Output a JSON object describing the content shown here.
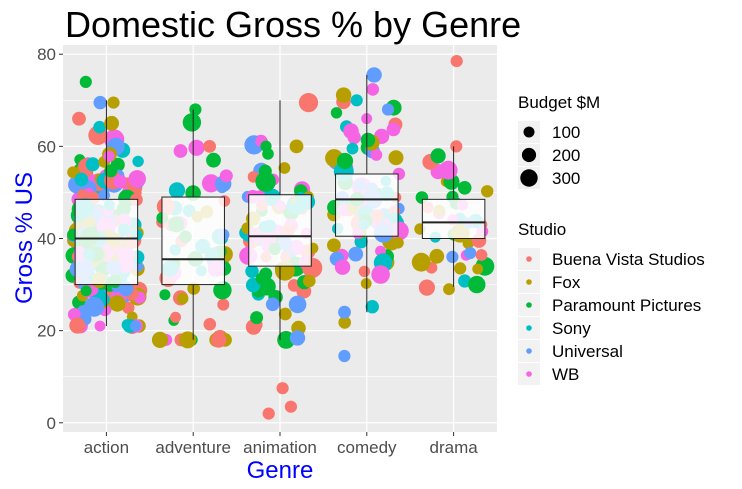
{
  "chart_data": {
    "type": "scatter",
    "subtype": "jittered points over boxplots",
    "title": "Domestic Gross % by Genre",
    "xlabel": "Genre",
    "ylabel": "Gross % US",
    "categories": [
      "action",
      "adventure",
      "animation",
      "comedy",
      "drama"
    ],
    "y_ticks": [
      0,
      20,
      40,
      60,
      80
    ],
    "ylim": [
      -2,
      82
    ],
    "grid": true,
    "axis_title_color": "#0000FF",
    "boxplots": [
      {
        "category": "action",
        "q1": 30,
        "median": 40,
        "q3": 48.5,
        "whisker_low": 21,
        "whisker_high": 70
      },
      {
        "category": "adventure",
        "q1": 30,
        "median": 35.5,
        "q3": 49,
        "whisker_low": 18,
        "whisker_high": 68
      },
      {
        "category": "animation",
        "q1": 34,
        "median": 40.5,
        "q3": 49.5,
        "whisker_low": 18,
        "whisker_high": 70
      },
      {
        "category": "comedy",
        "q1": 40.5,
        "median": 48.5,
        "q3": 54,
        "whisker_low": 24,
        "whisker_high": 75.5
      },
      {
        "category": "drama",
        "q1": 40,
        "median": 43.5,
        "q3": 48.5,
        "whisker_low": 29.5,
        "whisker_high": 60
      }
    ],
    "size_legend": {
      "title": "Budget $M",
      "values": [
        100,
        200,
        300
      ]
    },
    "color_legend": {
      "title": "Studio",
      "placement": "right",
      "entries": [
        {
          "name": "Buena Vista Studios",
          "color": "#F8766D"
        },
        {
          "name": "Fox",
          "color": "#B79F00"
        },
        {
          "name": "Paramount Pictures",
          "color": "#00BA38"
        },
        {
          "name": "Sony",
          "color": "#00BFC4"
        },
        {
          "name": "Universal",
          "color": "#619CFF"
        },
        {
          "name": "WB",
          "color": "#F564E3"
        }
      ]
    },
    "point_groups": [
      {
        "category": "action",
        "n": 220,
        "center": 40,
        "spread": 11,
        "min": 21,
        "max": 70,
        "extras": [
          {
            "y": 74,
            "studio": 2,
            "budget": 60
          },
          {
            "y": 69.5,
            "studio": 4,
            "budget": 80
          },
          {
            "y": 69.5,
            "studio": 1,
            "budget": 60
          },
          {
            "y": 66,
            "studio": 0,
            "budget": 90
          },
          {
            "y": 65,
            "studio": 1,
            "budget": 110
          }
        ]
      },
      {
        "category": "adventure",
        "n": 60,
        "center": 38,
        "spread": 12,
        "min": 18,
        "max": 68,
        "extras": [
          {
            "y": 68,
            "studio": 2,
            "budget": 60
          },
          {
            "y": 60,
            "studio": 0,
            "budget": 70
          },
          {
            "y": 57,
            "studio": 2,
            "budget": 110
          },
          {
            "y": 59,
            "studio": 5,
            "budget": 90
          },
          {
            "y": 18,
            "studio": 1,
            "budget": 160
          }
        ]
      },
      {
        "category": "animation",
        "n": 90,
        "center": 41,
        "spread": 11,
        "min": 18,
        "max": 70,
        "extras": [
          {
            "y": 69.5,
            "studio": 0,
            "budget": 220
          },
          {
            "y": 7.5,
            "studio": 0,
            "budget": 60
          },
          {
            "y": 3.5,
            "studio": 0,
            "budget": 60
          },
          {
            "y": 2,
            "studio": 0,
            "budget": 60
          },
          {
            "y": 60,
            "studio": 1,
            "budget": 90
          }
        ]
      },
      {
        "category": "comedy",
        "n": 90,
        "center": 48,
        "spread": 10,
        "min": 14,
        "max": 76,
        "extras": [
          {
            "y": 75.5,
            "studio": 4,
            "budget": 120
          },
          {
            "y": 70,
            "studio": 3,
            "budget": 60
          },
          {
            "y": 14.5,
            "studio": 4,
            "budget": 60
          },
          {
            "y": 24,
            "studio": 4,
            "budget": 70
          },
          {
            "y": 68,
            "studio": 4,
            "budget": 60
          }
        ]
      },
      {
        "category": "drama",
        "n": 40,
        "center": 44,
        "spread": 8,
        "min": 29,
        "max": 79,
        "extras": [
          {
            "y": 78.5,
            "studio": 0,
            "budget": 60
          },
          {
            "y": 30,
            "studio": 2,
            "budget": 170
          },
          {
            "y": 33.5,
            "studio": 1,
            "budget": 60
          },
          {
            "y": 36,
            "studio": 4,
            "budget": 60
          },
          {
            "y": 60,
            "studio": 0,
            "budget": 60
          }
        ]
      }
    ]
  }
}
